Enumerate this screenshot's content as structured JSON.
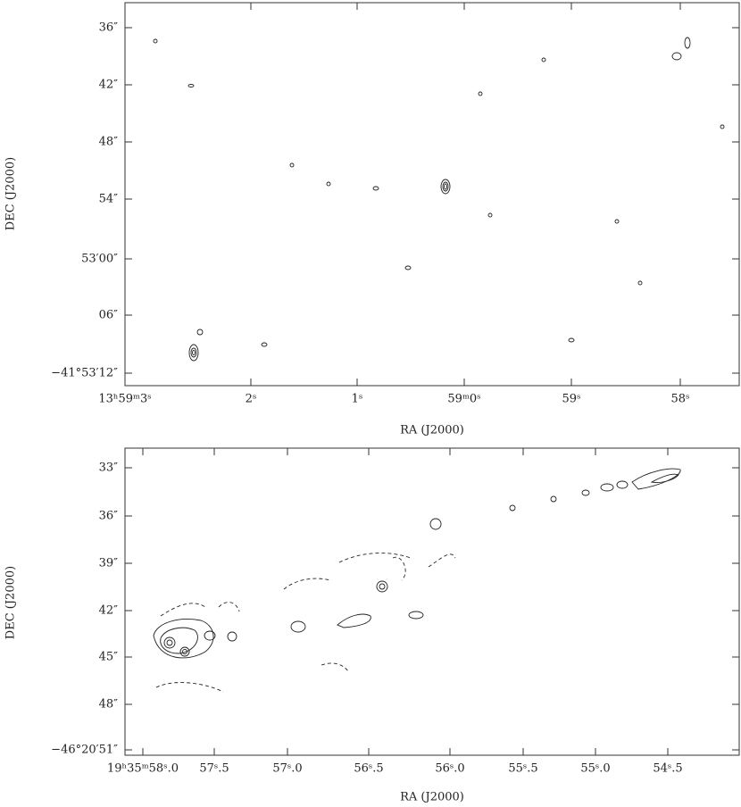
{
  "panels": [
    {
      "x_label": "RA (J2000)",
      "y_label": "DEC (J2000)",
      "x_ticks": [
        "13ʰ59ᵐ3ˢ",
        "2ˢ",
        "1ˢ",
        "59ᵐ0ˢ",
        "59ˢ",
        "58ˢ"
      ],
      "y_ticks": [
        "36″",
        "42″",
        "48″",
        "54″",
        "53′00″",
        "06″",
        "−41°53′12″"
      ]
    },
    {
      "x_label": "RA (J2000)",
      "y_label": "DEC (J2000)",
      "x_ticks": [
        "19ʰ35ᵐ58ˢ.0",
        "57ˢ.5",
        "57ˢ.0",
        "56ˢ.5",
        "56ˢ.0",
        "55ˢ.5",
        "55ˢ.0",
        "54ˢ.5"
      ],
      "y_ticks": [
        "33″",
        "36″",
        "39″",
        "42″",
        "45″",
        "48″",
        "−46°20′51″"
      ]
    }
  ]
}
